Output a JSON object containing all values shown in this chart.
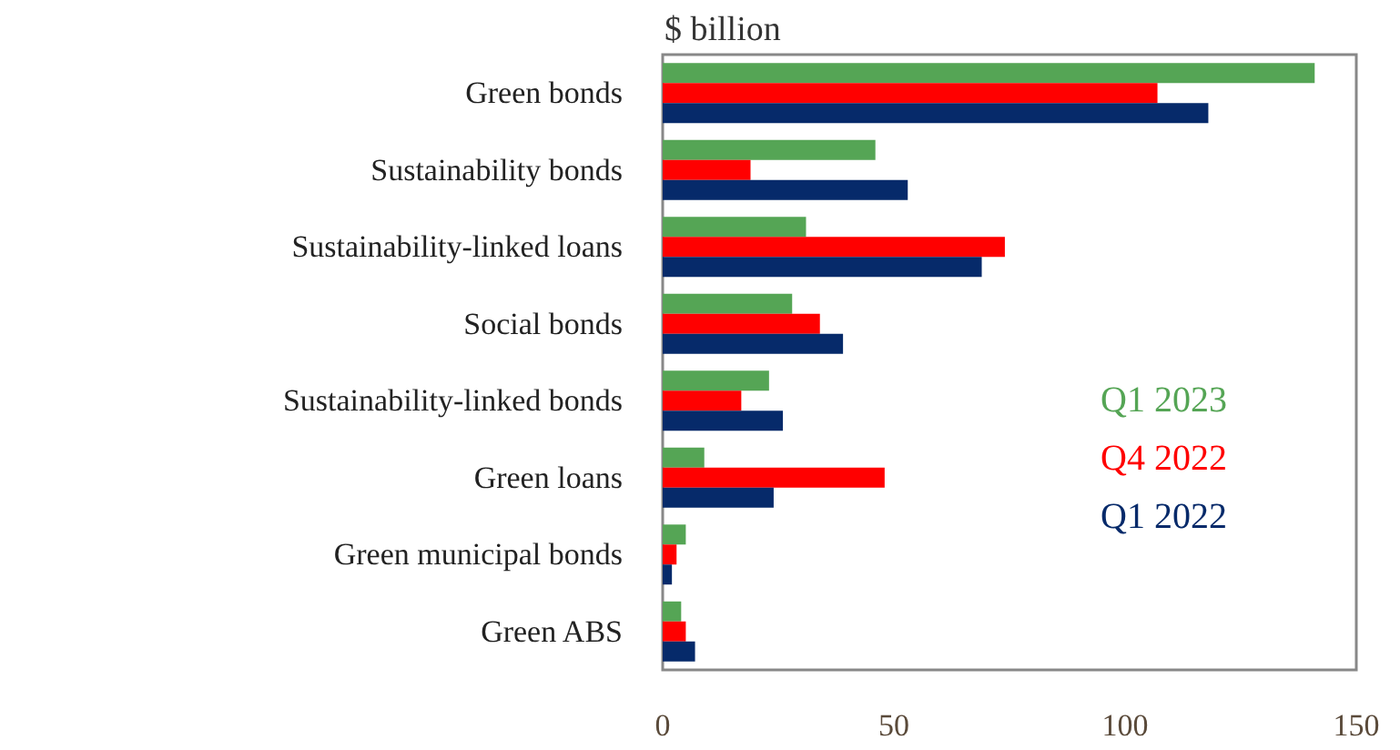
{
  "chart_data": {
    "type": "bar",
    "orientation": "horizontal",
    "xlabel": "$ billion",
    "categories": [
      "Green bonds",
      "Sustainability bonds",
      "Sustainability-linked loans",
      "Social bonds",
      "Sustainability-linked bonds",
      "Green loans",
      "Green municipal bonds",
      "Green ABS"
    ],
    "series": [
      {
        "name": "Q1 2023",
        "color": "#55a555",
        "values": [
          141,
          46,
          31,
          28,
          23,
          9,
          5,
          4
        ]
      },
      {
        "name": "Q4 2022",
        "color": "#ff0000",
        "values": [
          107,
          19,
          74,
          34,
          17,
          48,
          3,
          5
        ]
      },
      {
        "name": "Q1 2022",
        "color": "#062a6a",
        "values": [
          118,
          53,
          69,
          39,
          26,
          24,
          2,
          7
        ]
      }
    ],
    "xlim": [
      0,
      150
    ],
    "xticks": [
      0,
      50,
      100,
      150
    ],
    "grid": false,
    "legend": "right"
  }
}
